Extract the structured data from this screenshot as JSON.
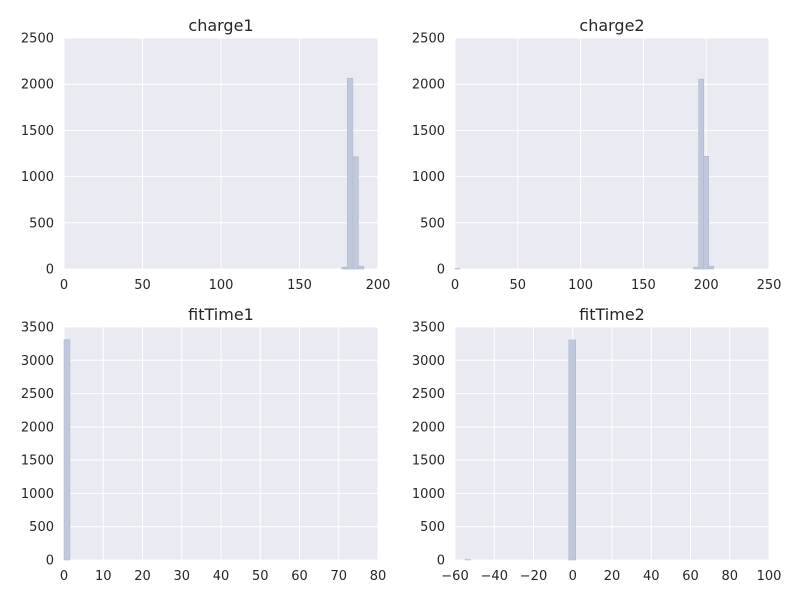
{
  "chart_data": [
    {
      "type": "bar",
      "title": "charge1",
      "xlabel": "",
      "ylabel": "",
      "xlim": [
        0,
        200
      ],
      "ylim": [
        0,
        2500
      ],
      "xticks": [
        0,
        50,
        100,
        150,
        200
      ],
      "yticks": [
        0,
        500,
        1000,
        1500,
        2000,
        2500
      ],
      "grid": true,
      "bin_edges": [
        177,
        180.5,
        184,
        187.5,
        191
      ],
      "counts": [
        20,
        2065,
        1215,
        30
      ]
    },
    {
      "type": "bar",
      "title": "charge2",
      "xlabel": "",
      "ylabel": "",
      "xlim": [
        0,
        250
      ],
      "ylim": [
        0,
        2500
      ],
      "xticks": [
        0,
        50,
        100,
        150,
        200,
        250
      ],
      "yticks": [
        0,
        500,
        1000,
        1500,
        2000,
        2500
      ],
      "grid": true,
      "bin_edges": [
        0,
        4,
        190,
        194,
        198,
        202,
        206
      ],
      "counts": [
        5,
        0,
        20,
        2055,
        1220,
        30
      ]
    },
    {
      "type": "bar",
      "title": "fitTime1",
      "xlabel": "",
      "ylabel": "",
      "xlim": [
        0,
        80
      ],
      "ylim": [
        0,
        3500
      ],
      "xticks": [
        0,
        10,
        20,
        30,
        40,
        50,
        60,
        70,
        80
      ],
      "yticks": [
        0,
        500,
        1000,
        1500,
        2000,
        2500,
        3000,
        3500
      ],
      "grid": true,
      "bin_edges": [
        0,
        1.5
      ],
      "counts": [
        3310
      ]
    },
    {
      "type": "bar",
      "title": "fitTime2",
      "xlabel": "",
      "ylabel": "",
      "xlim": [
        -60,
        100
      ],
      "ylim": [
        0,
        3500
      ],
      "xticks": [
        -60,
        -40,
        -20,
        0,
        20,
        40,
        60,
        80,
        100
      ],
      "xtick_labels": [
        "−60",
        "−40",
        "−20",
        "0",
        "20",
        "40",
        "60",
        "80",
        "100"
      ],
      "yticks": [
        0,
        500,
        1000,
        1500,
        2000,
        2500,
        3000,
        3500
      ],
      "grid": true,
      "bin_edges": [
        -55,
        -52,
        -2,
        1.5
      ],
      "counts": [
        5,
        0,
        3305
      ]
    }
  ]
}
